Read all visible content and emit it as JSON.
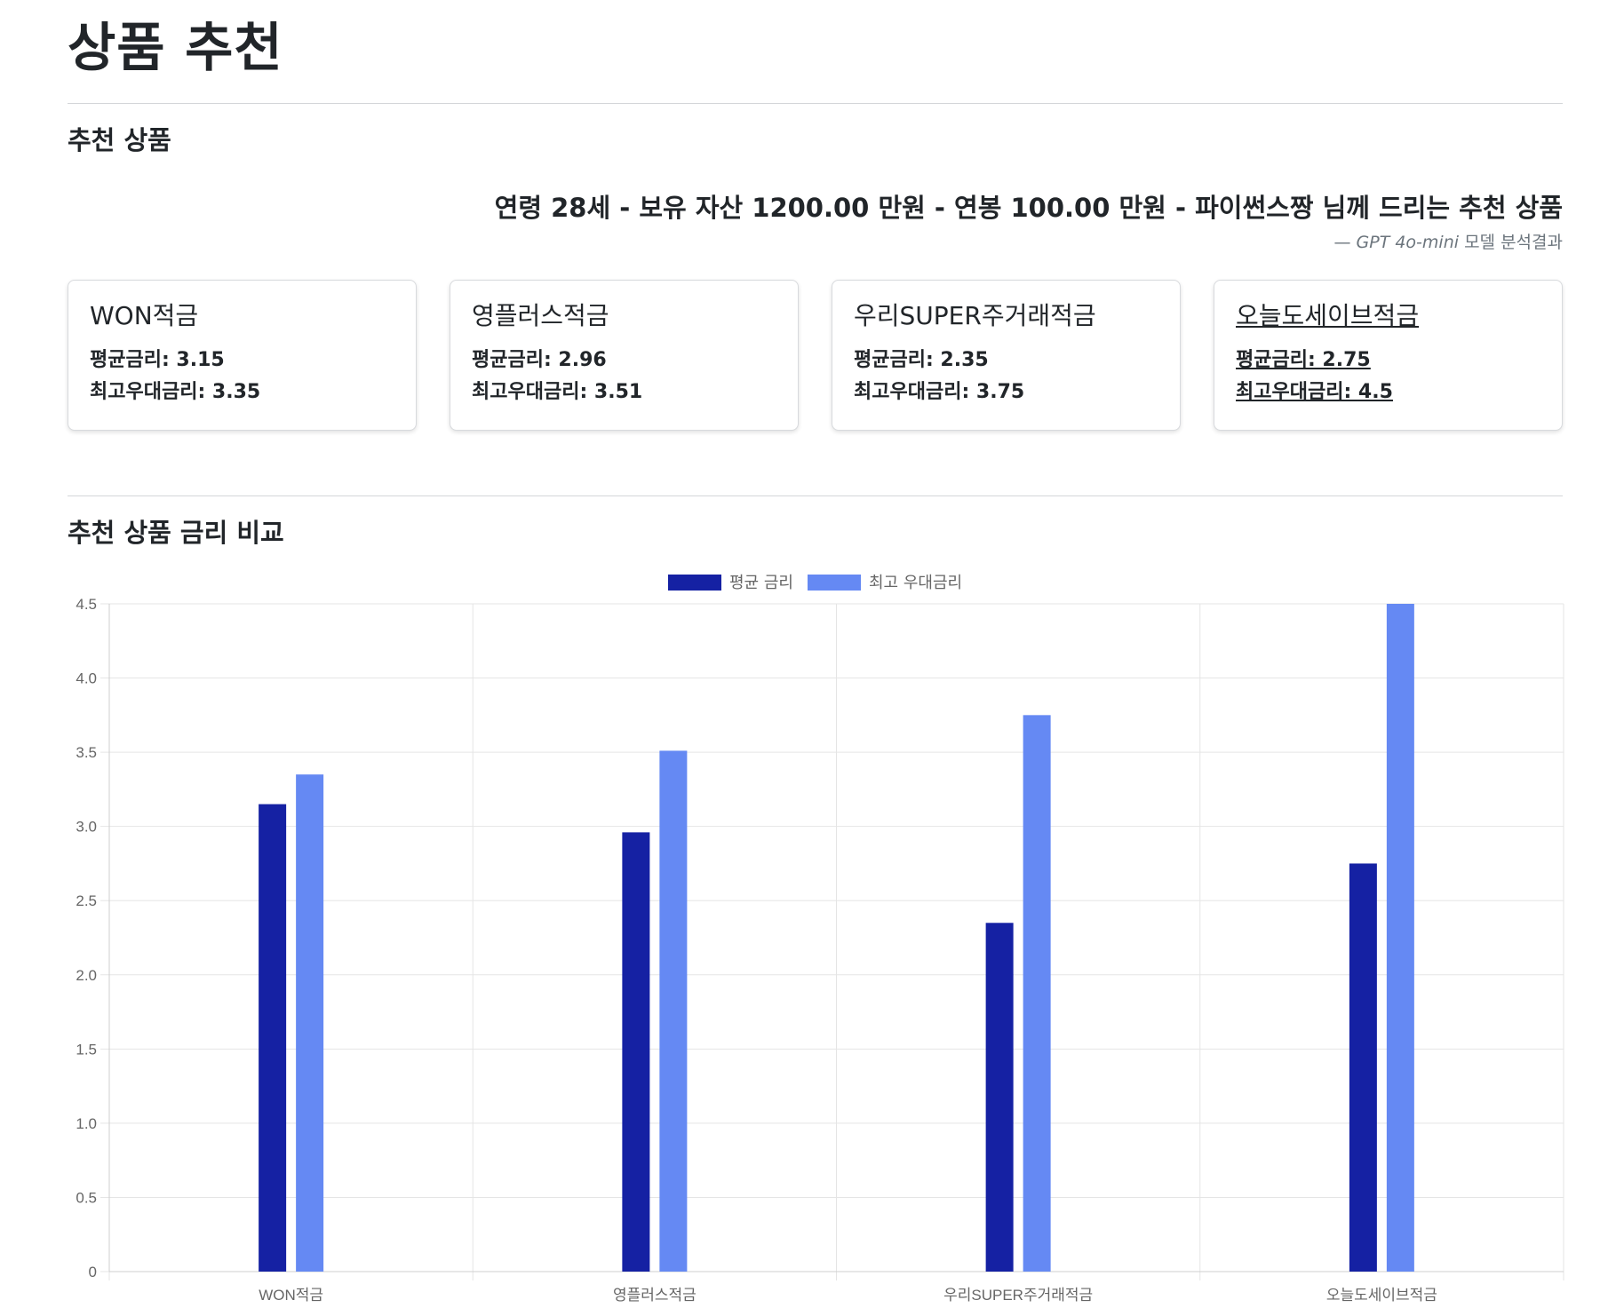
{
  "page_title": "상품 추천",
  "recommend_section": {
    "title": "추천 상품",
    "summary": "연령 28세 - 보유 자산 1200.00 만원 - 연봉 100.00 만원 - 파이썬스짱 님께 드리는 추천 상품",
    "caption_prefix": "— ",
    "caption_model": "GPT 4o-mini",
    "caption_suffix": " 모델 분석결과"
  },
  "avg_label": "평균금리: ",
  "max_label": "최고우대금리: ",
  "products": [
    {
      "name": "WON적금",
      "avg_rate": "3.15",
      "max_rate": "3.35"
    },
    {
      "name": "영플러스적금",
      "avg_rate": "2.96",
      "max_rate": "3.51"
    },
    {
      "name": "우리SUPER주거래적금",
      "avg_rate": "2.35",
      "max_rate": "3.75"
    },
    {
      "name": "오늘도세이브적금",
      "avg_rate": "2.75",
      "max_rate": "4.5"
    }
  ],
  "chart_section": {
    "title": "추천 상품 금리 비교"
  },
  "colors": {
    "avg": "#1521a3",
    "max": "#6589f3",
    "grid": "#e5e5e5",
    "axis_text": "#666666"
  },
  "chart_data": {
    "type": "bar",
    "title": "",
    "xlabel": "",
    "ylabel": "",
    "categories": [
      "WON적금",
      "영플러스적금",
      "우리SUPER주거래적금",
      "오늘도세이브적금"
    ],
    "series": [
      {
        "name": "평균 금리",
        "values": [
          3.15,
          2.96,
          2.35,
          2.75
        ]
      },
      {
        "name": "최고 우대금리",
        "values": [
          3.35,
          3.51,
          3.75,
          4.5
        ]
      }
    ],
    "ylim": [
      0,
      4.5
    ],
    "yticks": [
      "0",
      "0.5",
      "1.0",
      "1.5",
      "2.0",
      "2.5",
      "3.0",
      "3.5",
      "4.0",
      "4.5"
    ],
    "grid": true,
    "legend": "top-center"
  }
}
